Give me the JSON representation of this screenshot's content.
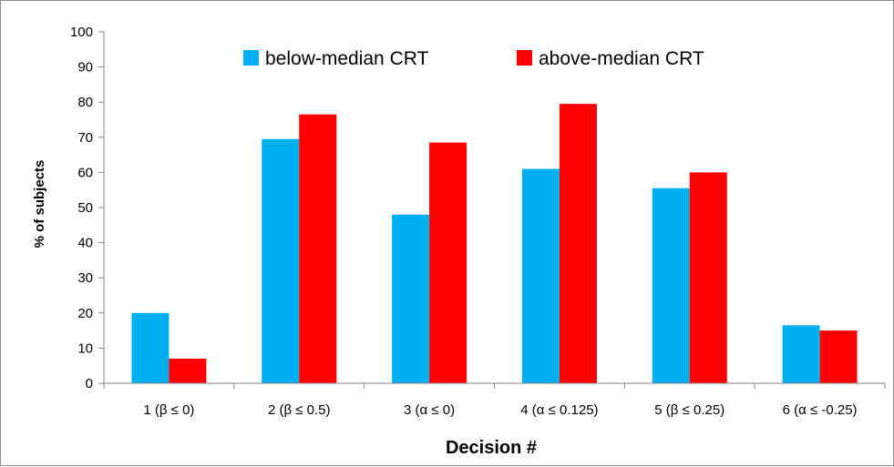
{
  "chart_data": {
    "type": "bar",
    "categories": [
      "1 (β ≤ 0)",
      "2 (β ≤ 0.5)",
      "3 (α ≤ 0)",
      "4 (α ≤ 0.125)",
      "5 (β ≤ 0.25)",
      "6 (α ≤ -0.25)"
    ],
    "series": [
      {
        "name": "below-median CRT",
        "color": "#00b0f0",
        "values": [
          20,
          69.5,
          48,
          61,
          55.5,
          16.5
        ]
      },
      {
        "name": "above-median CRT",
        "color": "#ff0000",
        "values": [
          7,
          76.5,
          68.5,
          79.5,
          60,
          15
        ]
      }
    ],
    "xlabel": "Decision #",
    "ylabel": "% of subjects",
    "ylim": [
      0,
      100
    ],
    "yticks": [
      "0",
      "10",
      "20",
      "30",
      "40",
      "50",
      "60",
      "70",
      "80",
      "90",
      "100"
    ],
    "grid": false,
    "legend_position": "top-center"
  }
}
